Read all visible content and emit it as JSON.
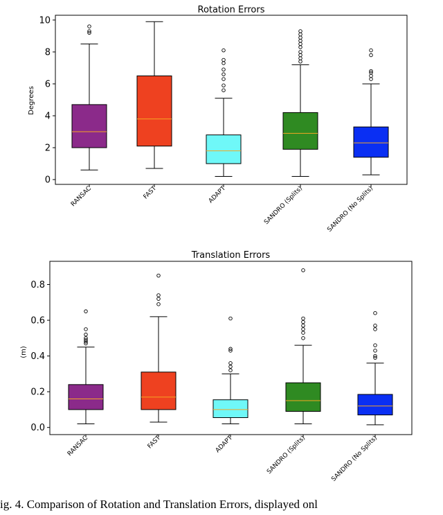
{
  "chart_data": [
    {
      "type": "box",
      "title": "Rotation Errors",
      "ylabel": "Degrees",
      "ylim": [
        -0.3,
        10.3
      ],
      "yticks": [
        0,
        2,
        4,
        6,
        8,
        10
      ],
      "categories": [
        "RANSAC",
        "FAST",
        "ADAPT",
        "SANDRO (Splits)",
        "SANDRO (No Splits)"
      ],
      "colors": [
        "#8b2a8a",
        "#ee4120",
        "#6ff8f8",
        "#2f8a22",
        "#0a2ff3"
      ],
      "boxes": [
        {
          "whislo": 0.6,
          "q1": 2.0,
          "med": 3.0,
          "q3": 4.7,
          "whishi": 8.5,
          "fliers": [
            9.2,
            9.3,
            9.6
          ]
        },
        {
          "whislo": 0.7,
          "q1": 2.1,
          "med": 3.8,
          "q3": 6.5,
          "whishi": 9.9,
          "fliers": []
        },
        {
          "whislo": 0.2,
          "q1": 1.0,
          "med": 1.8,
          "q3": 2.8,
          "whishi": 5.1,
          "fliers": [
            5.6,
            5.9,
            6.3,
            6.6,
            6.9,
            7.3,
            7.5,
            8.1
          ]
        },
        {
          "whislo": 0.2,
          "q1": 1.9,
          "med": 2.9,
          "q3": 4.2,
          "whishi": 7.2,
          "fliers": [
            7.4,
            7.6,
            7.8,
            8.0,
            8.3,
            8.5,
            8.7,
            8.9,
            9.1,
            9.3
          ]
        },
        {
          "whislo": 0.3,
          "q1": 1.4,
          "med": 2.3,
          "q3": 3.3,
          "whishi": 6.0,
          "fliers": [
            6.3,
            6.5,
            6.7,
            6.8,
            7.8,
            8.1
          ]
        }
      ]
    },
    {
      "type": "box",
      "title": "Translation Errors",
      "ylabel": "(m)",
      "ylim": [
        -0.04,
        0.93
      ],
      "yticks": [
        0.0,
        0.2,
        0.4,
        0.6,
        0.8
      ],
      "ytick_labels": [
        "0.0",
        "0.2",
        "0.4",
        "0.6",
        "0.8"
      ],
      "categories": [
        "RANSAC",
        "FAST",
        "ADAPT",
        "SANDRO (Splits)",
        "SANDRO (No Splits)"
      ],
      "colors": [
        "#8b2a8a",
        "#ee4120",
        "#6ff8f8",
        "#2f8a22",
        "#0a2ff3"
      ],
      "boxes": [
        {
          "whislo": 0.02,
          "q1": 0.1,
          "med": 0.16,
          "q3": 0.24,
          "whishi": 0.45,
          "fliers": [
            0.47,
            0.48,
            0.49,
            0.5,
            0.52,
            0.55,
            0.65
          ]
        },
        {
          "whislo": 0.03,
          "q1": 0.1,
          "med": 0.17,
          "q3": 0.31,
          "whishi": 0.62,
          "fliers": [
            0.69,
            0.72,
            0.74,
            0.85
          ]
        },
        {
          "whislo": 0.02,
          "q1": 0.055,
          "med": 0.1,
          "q3": 0.155,
          "whishi": 0.3,
          "fliers": [
            0.32,
            0.34,
            0.36,
            0.43,
            0.44,
            0.61
          ]
        },
        {
          "whislo": 0.02,
          "q1": 0.09,
          "med": 0.15,
          "q3": 0.25,
          "whishi": 0.46,
          "fliers": [
            0.5,
            0.53,
            0.55,
            0.57,
            0.59,
            0.61,
            0.88
          ]
        },
        {
          "whislo": 0.015,
          "q1": 0.07,
          "med": 0.12,
          "q3": 0.185,
          "whishi": 0.36,
          "fliers": [
            0.39,
            0.4,
            0.43,
            0.46,
            0.55,
            0.57,
            0.64
          ]
        }
      ]
    }
  ],
  "caption": "ig. 4.    Comparison of Rotation and Translation Errors, displayed onl"
}
